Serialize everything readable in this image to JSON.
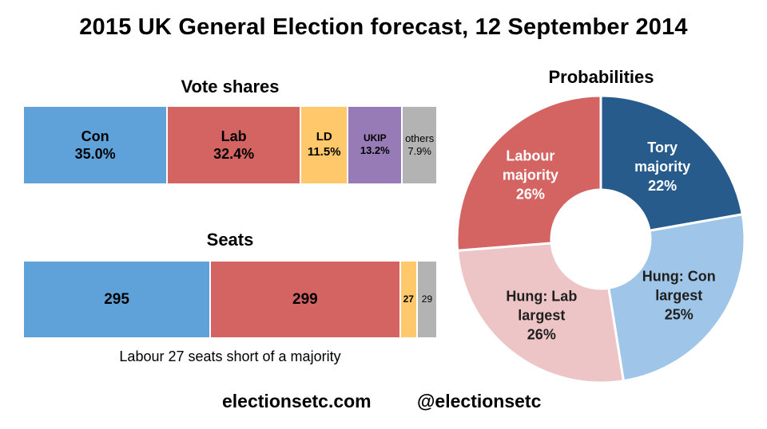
{
  "title": "2015 UK General Election forecast, 12 September 2014",
  "colors": {
    "con": "#5fa2da",
    "lab": "#d46462",
    "ld": "#ffc96b",
    "ukip": "#967bb6",
    "others": "#b3b3b3",
    "tory_majority": "#275b8c",
    "hung_con": "#9fc5e8",
    "hung_lab": "#eec5c6",
    "labour_majority": "#d46462"
  },
  "chart_data": [
    {
      "type": "bar",
      "orientation": "stacked-horizontal",
      "title": "Vote shares",
      "categories": [
        "Con",
        "Lab",
        "LD",
        "UKIP",
        "others"
      ],
      "values": [
        35.0,
        32.4,
        11.5,
        13.2,
        7.9
      ],
      "labels": [
        "35.0%",
        "32.4%",
        "11.5%",
        "13.2%",
        "7.9%"
      ],
      "visual_weights": [
        35.0,
        32.4,
        11.5,
        13.2,
        8.1
      ]
    },
    {
      "type": "bar",
      "orientation": "stacked-horizontal",
      "title": "Seats",
      "categories": [
        "Con",
        "Lab",
        "LD",
        "others"
      ],
      "values": [
        295,
        299,
        27,
        29
      ],
      "labels": [
        "295",
        "299",
        "27",
        "29"
      ],
      "annotation": "Labour 27 seats short of a majority"
    },
    {
      "type": "pie",
      "style": "donut",
      "title": "Probabilities",
      "categories": [
        "Tory majority",
        "Hung: Con largest",
        "Hung: Lab largest",
        "Labour majority"
      ],
      "label_lines": [
        [
          "Tory",
          "majority"
        ],
        [
          "Hung: Con",
          "largest"
        ],
        [
          "Hung: Lab",
          "largest"
        ],
        [
          "Labour",
          "majority"
        ]
      ],
      "values": [
        22,
        25,
        26,
        26
      ],
      "labels": [
        "22%",
        "25%",
        "26%",
        "26%"
      ]
    }
  ],
  "footer": {
    "website": "electionsetc.com",
    "handle": "@electionsetc"
  }
}
